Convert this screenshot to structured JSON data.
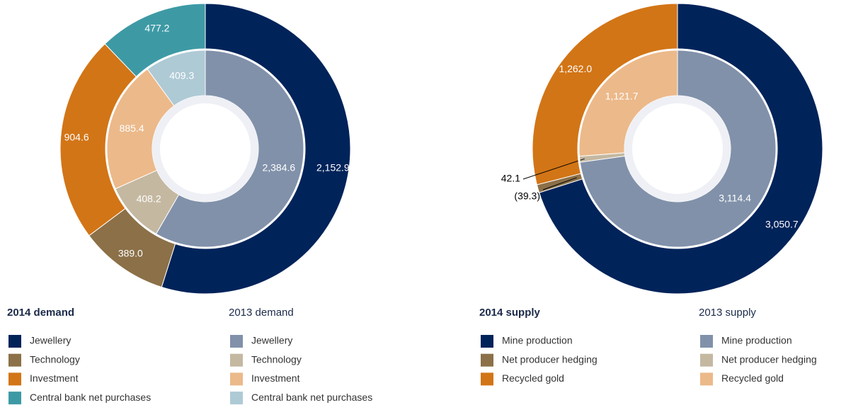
{
  "chart_data": [
    {
      "type": "pie",
      "categories": [
        "Jewellery",
        "Technology",
        "Investment",
        "Central bank net purchases"
      ],
      "series": [
        {
          "name": "2014 demand",
          "colors": [
            "#00235a",
            "#8b7048",
            "#d27516",
            "#3d9aa5"
          ],
          "values": [
            2152.9,
            389.0,
            904.6,
            477.2
          ],
          "value_labels": [
            "2,152.9",
            "389.0",
            "904.6",
            "477.2"
          ]
        },
        {
          "name": "2013 demand",
          "colors": [
            "#8191aa",
            "#c4b8a1",
            "#ecb98a",
            "#aecad5"
          ],
          "values": [
            2384.6,
            408.2,
            885.4,
            409.3
          ],
          "value_labels": [
            "2,384.6",
            "408.2",
            "885.4",
            "409.3"
          ]
        }
      ]
    },
    {
      "type": "pie",
      "categories": [
        "Mine production",
        "Net producer hedging",
        "Recycled gold"
      ],
      "series": [
        {
          "name": "2014 supply",
          "colors": [
            "#00235a",
            "#8b7048",
            "#d27516"
          ],
          "values": [
            3050.7,
            -39.3,
            1262.0
          ],
          "value_labels": [
            "3,050.7",
            "(39.3)",
            "1,262.0"
          ]
        },
        {
          "name": "2013 supply",
          "colors": [
            "#8191aa",
            "#c4b8a1",
            "#ecb98a"
          ],
          "values": [
            3114.4,
            42.1,
            1121.7
          ],
          "value_labels": [
            "3,114.4",
            "42.1",
            "1,121.7"
          ]
        }
      ]
    }
  ]
}
